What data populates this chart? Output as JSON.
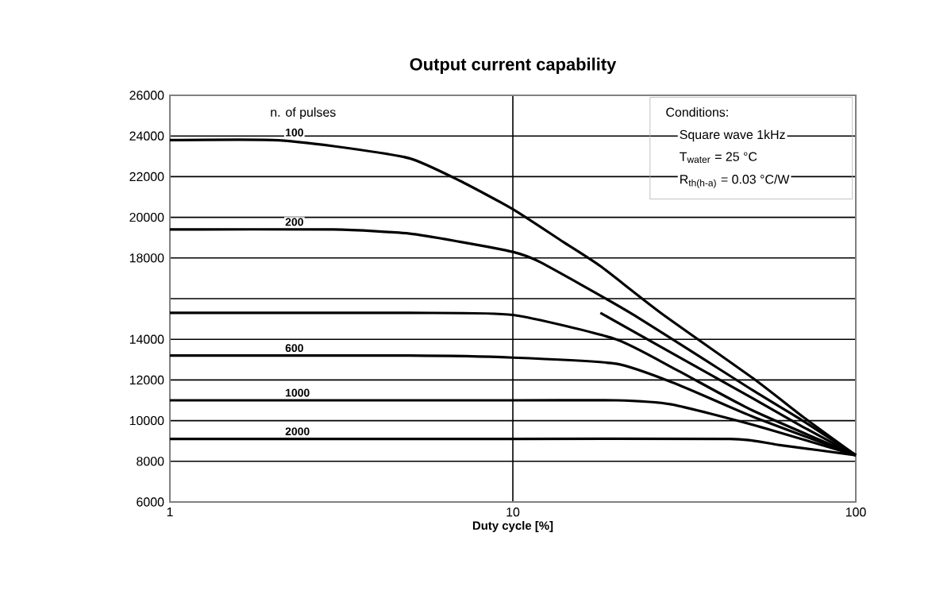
{
  "chart_data": {
    "type": "line",
    "title": "Output current capability",
    "xlabel": "Duty cycle  [%]",
    "log": "x",
    "xlim": [
      1,
      100
    ],
    "xticks": [
      1,
      10,
      100
    ],
    "ylim": [
      6000,
      26000
    ],
    "yticks": [
      6000,
      8000,
      10000,
      12000,
      14000,
      {
        "value": 16000,
        "label": null
      },
      18000,
      20000,
      22000,
      24000,
      26000
    ],
    "grid": true,
    "legend": false,
    "marker": "none",
    "line_style": "solid",
    "annotations": [
      "n. of pulses",
      "Conditions:",
      "Square wave 1kHz",
      "T$_{water}$  =    25 °C",
      "R$_{th(h-a)}$ = 0.03 °C/W"
    ],
    "series": [
      {
        "name": "100",
        "color": "#000000",
        "x": [
          1,
          2,
          3,
          5,
          7,
          10,
          14,
          18,
          27,
          50,
          70,
          100
        ],
        "values": [
          23800,
          23800,
          23500,
          22900,
          21800,
          20400,
          18800,
          17600,
          15300,
          12100,
          10200,
          8300
        ]
      },
      {
        "name": "200",
        "color": "#000000",
        "x": [
          1,
          3,
          5,
          7,
          10,
          12,
          22,
          50,
          70,
          100
        ],
        "values": [
          19400,
          19400,
          19200,
          18800,
          18300,
          17800,
          15300,
          11500,
          10000,
          8300
        ]
      },
      {
        "color": "#000000",
        "x": [
          18,
          50,
          70,
          100
        ],
        "values": [
          15300,
          11100,
          9700,
          8300
        ]
      },
      {
        "color": "#000000",
        "x": [
          1,
          5,
          10,
          20,
          30,
          50,
          100
        ],
        "values": [
          15300,
          15300,
          15200,
          14000,
          12500,
          10500,
          8300
        ]
      },
      {
        "name": "600",
        "color": "#000000",
        "x": [
          1,
          5,
          10,
          20,
          30,
          50,
          100
        ],
        "values": [
          13200,
          13200,
          13100,
          12800,
          11800,
          10200,
          8300
        ]
      },
      {
        "name": "1000",
        "color": "#000000",
        "x": [
          1,
          10,
          20,
          29,
          50,
          100
        ],
        "values": [
          11000,
          11000,
          11000,
          10800,
          9800,
          8300
        ]
      },
      {
        "name": "2000",
        "color": "#000000",
        "x": [
          1,
          10,
          43,
          60,
          100
        ],
        "values": [
          9100,
          9100,
          9100,
          8800,
          8300
        ]
      }
    ]
  }
}
